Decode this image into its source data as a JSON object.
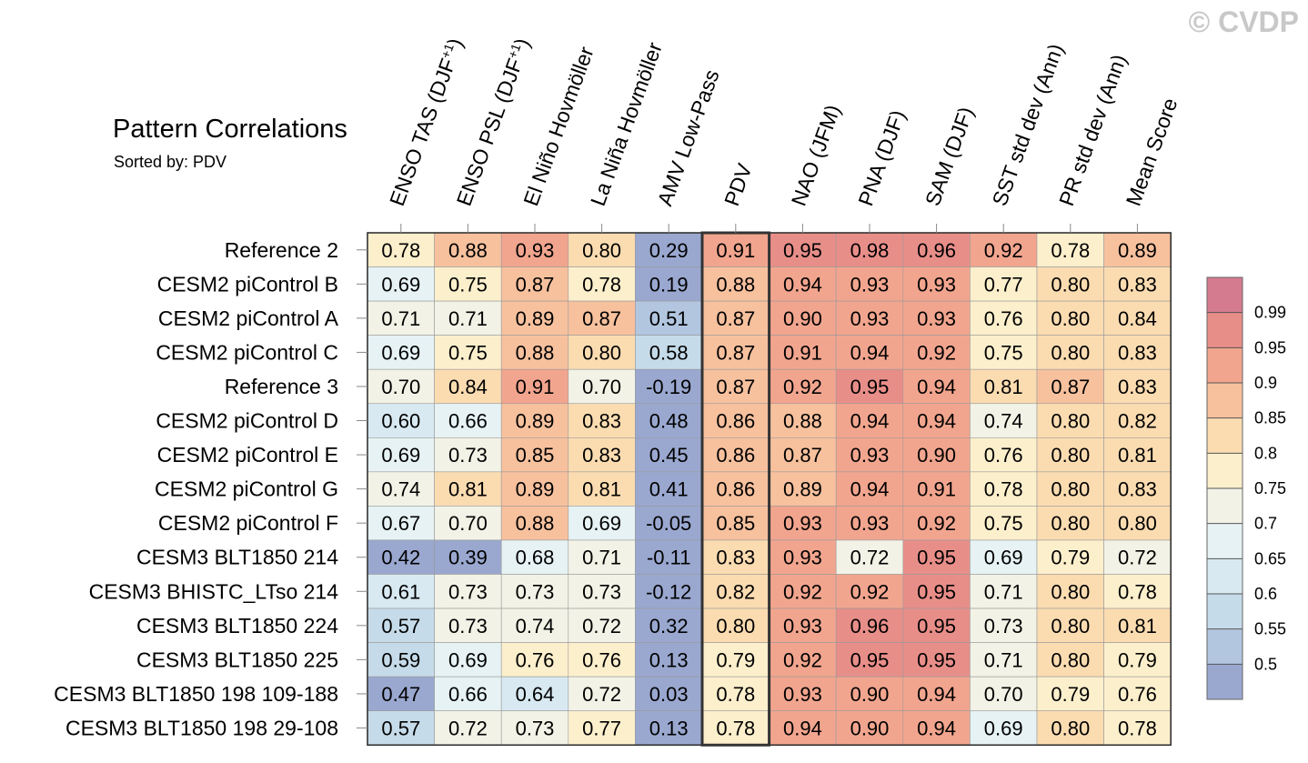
{
  "watermark": "© CVDP",
  "chart_data": {
    "type": "heatmap",
    "title": "Pattern Correlations",
    "subtitle": "Sorted by: PDV",
    "highlight_column": "PDV",
    "columns": [
      "ENSO TAS (DJF+1)",
      "ENSO PSL (DJF+1)",
      "El Niño Hovmöller",
      "La Niña Hovmöller",
      "AMV Low-Pass",
      "PDV",
      "NAO (JFM)",
      "PNA (DJF)",
      "SAM (DJF)",
      "SST std dev (Ann)",
      "PR std dev (Ann)",
      "Mean Score"
    ],
    "rows": [
      {
        "name": "Reference 2",
        "values": [
          "0.78",
          "0.88",
          "0.93",
          "0.80",
          "0.29",
          "0.91",
          "0.95",
          "0.98",
          "0.96",
          "0.92",
          "0.78",
          "0.89"
        ]
      },
      {
        "name": "CESM2 piControl B",
        "values": [
          "0.69",
          "0.75",
          "0.87",
          "0.78",
          "0.19",
          "0.88",
          "0.94",
          "0.93",
          "0.93",
          "0.77",
          "0.80",
          "0.83"
        ]
      },
      {
        "name": "CESM2 piControl A",
        "values": [
          "0.71",
          "0.71",
          "0.89",
          "0.87",
          "0.51",
          "0.87",
          "0.90",
          "0.93",
          "0.93",
          "0.76",
          "0.80",
          "0.84"
        ]
      },
      {
        "name": "CESM2 piControl C",
        "values": [
          "0.69",
          "0.75",
          "0.88",
          "0.80",
          "0.58",
          "0.87",
          "0.91",
          "0.94",
          "0.92",
          "0.75",
          "0.80",
          "0.83"
        ]
      },
      {
        "name": "Reference 3",
        "values": [
          "0.70",
          "0.84",
          "0.91",
          "0.70",
          "-0.19",
          "0.87",
          "0.92",
          "0.95",
          "0.94",
          "0.81",
          "0.87",
          "0.83"
        ]
      },
      {
        "name": "CESM2 piControl D",
        "values": [
          "0.60",
          "0.66",
          "0.89",
          "0.83",
          "0.48",
          "0.86",
          "0.88",
          "0.94",
          "0.94",
          "0.74",
          "0.80",
          "0.82"
        ]
      },
      {
        "name": "CESM2 piControl E",
        "values": [
          "0.69",
          "0.73",
          "0.85",
          "0.83",
          "0.45",
          "0.86",
          "0.87",
          "0.93",
          "0.90",
          "0.76",
          "0.80",
          "0.81"
        ]
      },
      {
        "name": "CESM2 piControl G",
        "values": [
          "0.74",
          "0.81",
          "0.89",
          "0.81",
          "0.41",
          "0.86",
          "0.89",
          "0.94",
          "0.91",
          "0.78",
          "0.80",
          "0.83"
        ]
      },
      {
        "name": "CESM2 piControl F",
        "values": [
          "0.67",
          "0.70",
          "0.88",
          "0.69",
          "-0.05",
          "0.85",
          "0.93",
          "0.93",
          "0.92",
          "0.75",
          "0.80",
          "0.80"
        ]
      },
      {
        "name": "CESM3 BLT1850 214",
        "values": [
          "0.42",
          "0.39",
          "0.68",
          "0.71",
          "-0.11",
          "0.83",
          "0.93",
          "0.72",
          "0.95",
          "0.69",
          "0.79",
          "0.72"
        ]
      },
      {
        "name": "CESM3 BHISTC_LTso 214",
        "values": [
          "0.61",
          "0.73",
          "0.73",
          "0.73",
          "-0.12",
          "0.82",
          "0.92",
          "0.92",
          "0.95",
          "0.71",
          "0.80",
          "0.78"
        ]
      },
      {
        "name": "CESM3 BLT1850 224",
        "values": [
          "0.57",
          "0.73",
          "0.74",
          "0.72",
          "0.32",
          "0.80",
          "0.93",
          "0.96",
          "0.95",
          "0.73",
          "0.80",
          "0.81"
        ]
      },
      {
        "name": "CESM3 BLT1850 225",
        "values": [
          "0.59",
          "0.69",
          "0.76",
          "0.76",
          "0.13",
          "0.79",
          "0.92",
          "0.95",
          "0.95",
          "0.71",
          "0.80",
          "0.79"
        ]
      },
      {
        "name": "CESM3 BLT1850 198 109-188",
        "values": [
          "0.47",
          "0.66",
          "0.64",
          "0.72",
          "0.03",
          "0.78",
          "0.93",
          "0.90",
          "0.94",
          "0.70",
          "0.79",
          "0.76"
        ]
      },
      {
        "name": "CESM3 BLT1850 198 29-108",
        "values": [
          "0.57",
          "0.72",
          "0.73",
          "0.77",
          "0.13",
          "0.78",
          "0.94",
          "0.90",
          "0.94",
          "0.69",
          "0.80",
          "0.78"
        ]
      }
    ],
    "colorbar": {
      "levels": [
        "0.5",
        "0.55",
        "0.6",
        "0.65",
        "0.7",
        "0.75",
        "0.8",
        "0.85",
        "0.9",
        "0.95",
        "0.99"
      ],
      "colors": [
        "#9aa8d0",
        "#b2c6e0",
        "#c6dbe9",
        "#d8e9f1",
        "#e6f2f4",
        "#f2f2e6",
        "#fcefcc",
        "#fbdcb1",
        "#f7c19e",
        "#f2a58e",
        "#e88e89",
        "#d47b8f"
      ]
    }
  }
}
